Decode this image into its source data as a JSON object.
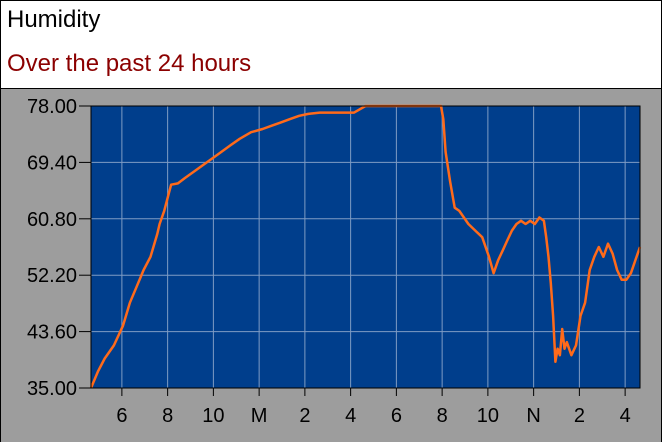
{
  "title": "Humidity",
  "subtitle": "Over the past 24 hours",
  "colors": {
    "plot_background": "#003e8c",
    "grid": "#7f9cc4",
    "line": "#ff6a1a",
    "panel": "#9d9d9d",
    "subtitle": "#8b0000"
  },
  "chart_data": {
    "type": "line",
    "title": "Humidity",
    "subtitle": "Over the past 24 hours",
    "xlabel": "",
    "ylabel": "",
    "grid": true,
    "xlim": [
      0,
      24
    ],
    "ylim": [
      35,
      78
    ],
    "y_ticks": [
      "78.00",
      "69.40",
      "60.80",
      "52.20",
      "43.60",
      "35.00"
    ],
    "y_tick_values": [
      78.0,
      69.4,
      60.8,
      52.2,
      43.6,
      35.0
    ],
    "x_ticks": [
      "6",
      "8",
      "10",
      "M",
      "2",
      "4",
      "6",
      "8",
      "10",
      "N",
      "2",
      "4"
    ],
    "x_tick_values": [
      1.35,
      3.35,
      5.35,
      7.35,
      9.35,
      11.35,
      13.35,
      15.35,
      17.35,
      19.35,
      21.35,
      23.35
    ],
    "series": [
      {
        "x": [
          0.0,
          0.3,
          0.6,
          1.0,
          1.4,
          1.7,
          2.0,
          2.3,
          2.6,
          2.9,
          3.0,
          3.2,
          3.5,
          3.8,
          4.1,
          4.5,
          4.9,
          5.3,
          5.7,
          6.1,
          6.5,
          7.0,
          7.5,
          7.9,
          8.3,
          8.7,
          9.1,
          9.5,
          10.0,
          10.5,
          11.0,
          11.5,
          12.0,
          12.5,
          13.0,
          13.5,
          14.0,
          14.5,
          15.0,
          15.3,
          15.4,
          15.5,
          15.7,
          15.9,
          16.1,
          16.3,
          16.5,
          16.8,
          17.1,
          17.4,
          17.6,
          17.8,
          18.0,
          18.2,
          18.4,
          18.6,
          18.8,
          19.0,
          19.2,
          19.4,
          19.6,
          19.8,
          19.9,
          20.0,
          20.1,
          20.2,
          20.3,
          20.4,
          20.5,
          20.6,
          20.7,
          20.8,
          21.0,
          21.2,
          21.4,
          21.6,
          21.8,
          22.0,
          22.2,
          22.4,
          22.6,
          22.8,
          23.0,
          23.2,
          23.4,
          23.6,
          23.8,
          24.0
        ],
        "values": [
          35.0,
          37.5,
          39.5,
          41.5,
          44.5,
          48.0,
          50.5,
          53.0,
          55.0,
          58.5,
          60.0,
          62.0,
          66.0,
          66.2,
          67.0,
          68.0,
          69.0,
          70.0,
          71.0,
          72.0,
          73.0,
          74.0,
          74.5,
          75.0,
          75.5,
          76.0,
          76.5,
          76.8,
          77.0,
          77.0,
          77.0,
          77.0,
          78.0,
          78.0,
          78.0,
          78.0,
          78.0,
          78.0,
          78.0,
          78.0,
          76.0,
          71.0,
          66.5,
          62.5,
          62.0,
          61.0,
          60.0,
          59.0,
          58.0,
          55.0,
          52.5,
          54.5,
          56.0,
          57.5,
          59.0,
          60.0,
          60.5,
          60.0,
          60.5,
          60.0,
          61.0,
          60.5,
          58.0,
          55.0,
          51.0,
          46.0,
          39.0,
          41.0,
          40.0,
          44.0,
          41.0,
          42.0,
          40.0,
          41.5,
          46.0,
          48.0,
          53.0,
          55.0,
          56.5,
          55.0,
          57.0,
          55.5,
          53.0,
          51.5,
          51.5,
          52.5,
          54.5,
          56.5
        ]
      }
    ]
  }
}
